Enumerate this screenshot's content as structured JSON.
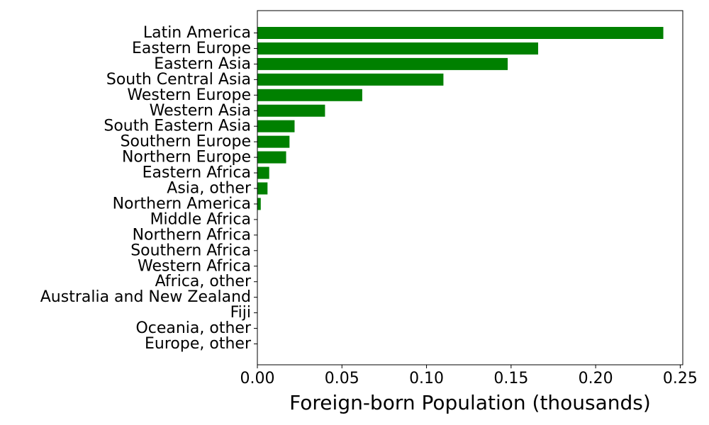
{
  "chart_data": {
    "type": "bar",
    "orientation": "horizontal",
    "title": "",
    "xlabel": "Foreign-born Population (thousands)",
    "ylabel": "",
    "xlim": [
      0,
      0.2515
    ],
    "xticks": [
      0.0,
      0.05,
      0.1,
      0.15,
      0.2,
      0.25
    ],
    "xtick_labels": [
      "0.00",
      "0.05",
      "0.10",
      "0.15",
      "0.20",
      "0.25"
    ],
    "grid": false,
    "bar_color": "#008000",
    "categories": [
      "Latin America",
      "Eastern Europe",
      "Eastern Asia",
      "South Central Asia",
      "Western Europe",
      "Western Asia",
      "South Eastern Asia",
      "Southern Europe",
      "Northern Europe",
      "Eastern Africa",
      "Asia, other",
      "Northern America",
      "Middle Africa",
      "Northern Africa",
      "Southern Africa",
      "Western Africa",
      "Africa, other",
      "Australia and New Zealand",
      "Fiji",
      "Oceania, other",
      "Europe, other"
    ],
    "values": [
      0.24,
      0.166,
      0.148,
      0.11,
      0.062,
      0.04,
      0.022,
      0.019,
      0.017,
      0.007,
      0.006,
      0.002,
      0,
      0,
      0,
      0,
      0,
      0,
      0,
      0,
      0
    ]
  }
}
